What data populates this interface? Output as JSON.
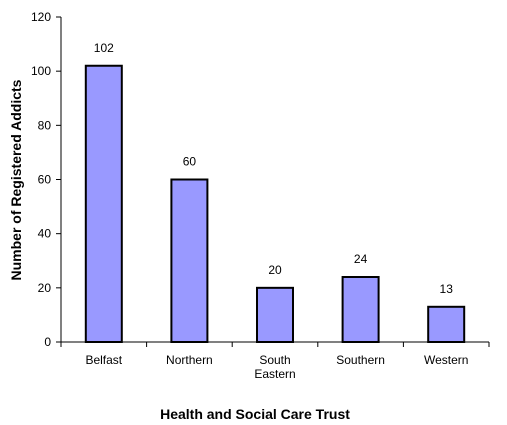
{
  "chart_data": {
    "type": "bar",
    "categories": [
      [
        "Belfast"
      ],
      [
        "Northern"
      ],
      [
        "South",
        "Eastern"
      ],
      [
        "Southern"
      ],
      [
        "Western"
      ]
    ],
    "values": [
      102,
      60,
      20,
      24,
      13
    ],
    "data_labels": [
      "102",
      "60",
      "20",
      "24",
      "13"
    ],
    "title": "",
    "xlabel": "Health and Social Care Trust",
    "ylabel": "Number of Registered Addicts",
    "ylim": [
      0,
      120
    ],
    "yticks": [
      0,
      20,
      40,
      60,
      80,
      100,
      120
    ],
    "ytick_labels": [
      "0",
      "20",
      "40",
      "60",
      "80",
      "100",
      "120"
    ],
    "grid": false,
    "legend": "none",
    "bar_color": "#9999ff",
    "bar_edge_color": "#000000"
  }
}
